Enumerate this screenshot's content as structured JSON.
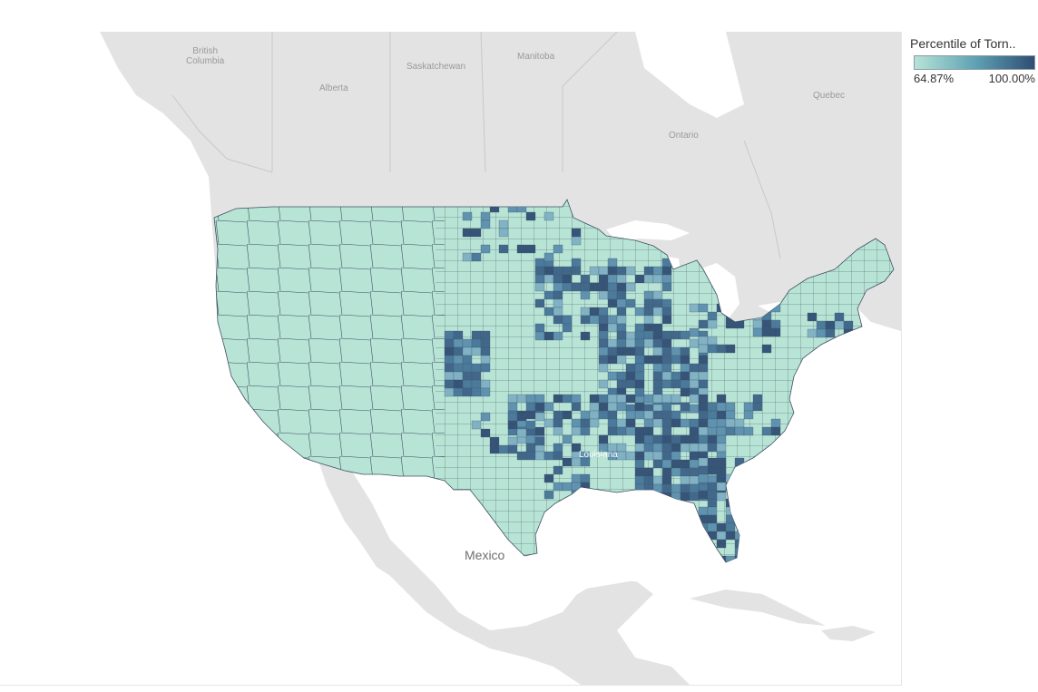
{
  "legend": {
    "title": "Percentile of Torn..",
    "min_label": "64.87%",
    "max_label": "100.00%",
    "color_low": "#b7e3d6",
    "color_high": "#2f4d73"
  },
  "map": {
    "basemap_labels": {
      "british_columbia": "British\nColumbia",
      "alberta": "Alberta",
      "saskatchewan": "Saskatchewan",
      "manitoba": "Manitoba",
      "ontario": "Ontario",
      "quebec": "Quebec",
      "mexico": "Mexico",
      "louisiana": "Louisiana"
    },
    "colors": {
      "water": "#ffffff",
      "land": "#e2e2e2",
      "us_base": "#b8e4d6",
      "county_stroke": "#3d5060"
    }
  }
}
